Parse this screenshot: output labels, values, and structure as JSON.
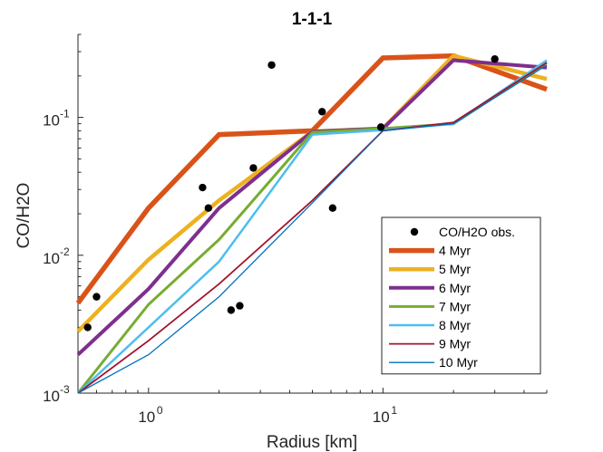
{
  "chart_data": {
    "type": "line",
    "title": "1-1-1",
    "xlabel": "Radius [km]",
    "ylabel": "CO/H2O",
    "xscale": "log",
    "yscale": "log",
    "xlim": [
      0.5,
      50
    ],
    "ylim": [
      0.001,
      0.4
    ],
    "grid": false,
    "legend_position": "bottom-right",
    "x_ticks": [
      {
        "value": 1,
        "base": "10",
        "exp": "0"
      },
      {
        "value": 10,
        "base": "10",
        "exp": "1"
      }
    ],
    "y_ticks": [
      {
        "value": 0.001,
        "base": "10",
        "exp": "-3"
      },
      {
        "value": 0.01,
        "base": "10",
        "exp": "-2"
      },
      {
        "value": 0.1,
        "base": "10",
        "exp": "-1"
      }
    ],
    "observations": {
      "name": "CO/H2O obs.",
      "color": "#000000",
      "x": [
        0.55,
        0.6,
        1.7,
        1.8,
        2.25,
        2.45,
        2.8,
        3.35,
        5.5,
        6.1,
        9.8,
        30
      ],
      "y": [
        0.003,
        0.005,
        0.031,
        0.022,
        0.004,
        0.0043,
        0.043,
        0.24,
        0.11,
        0.022,
        0.085,
        0.265
      ]
    },
    "series": [
      {
        "name": "4 Myr",
        "color": "#D95319",
        "width": 5.5,
        "x": [
          0.5,
          1,
          2,
          5,
          10,
          20,
          50
        ],
        "y": [
          0.0045,
          0.022,
          0.075,
          0.08,
          0.27,
          0.28,
          0.16
        ]
      },
      {
        "name": "5 Myr",
        "color": "#EDB120",
        "width": 4.5,
        "x": [
          0.5,
          1,
          2,
          5,
          10,
          20,
          50
        ],
        "y": [
          0.0028,
          0.0093,
          0.025,
          0.079,
          0.083,
          0.28,
          0.19
        ]
      },
      {
        "name": "6 Myr",
        "color": "#7E2F8E",
        "width": 4,
        "x": [
          0.5,
          1,
          2,
          5,
          10,
          20,
          50
        ],
        "y": [
          0.0019,
          0.0057,
          0.022,
          0.079,
          0.083,
          0.26,
          0.23
        ]
      },
      {
        "name": "7 Myr",
        "color": "#77AC30",
        "width": 3,
        "x": [
          0.5,
          1,
          2,
          5,
          10,
          20,
          50
        ],
        "y": [
          0.001,
          0.0044,
          0.013,
          0.078,
          0.083,
          0.09,
          0.25
        ]
      },
      {
        "name": "8 Myr",
        "color": "#4DBEEE",
        "width": 2.5,
        "x": [
          0.5,
          1,
          2,
          5,
          10,
          20,
          50
        ],
        "y": [
          0.001,
          0.003,
          0.009,
          0.075,
          0.081,
          0.09,
          0.26
        ]
      },
      {
        "name": "9 Myr",
        "color": "#A2142F",
        "width": 1.8,
        "x": [
          0.5,
          1,
          2,
          5,
          10,
          20,
          50
        ],
        "y": [
          0.001,
          0.0024,
          0.0062,
          0.025,
          0.08,
          0.092,
          0.25
        ]
      },
      {
        "name": "10 Myr",
        "color": "#0072BD",
        "width": 1.3,
        "x": [
          0.5,
          1,
          2,
          5,
          10,
          20,
          50
        ],
        "y": [
          0.001,
          0.0019,
          0.005,
          0.024,
          0.08,
          0.09,
          0.24
        ]
      }
    ]
  }
}
